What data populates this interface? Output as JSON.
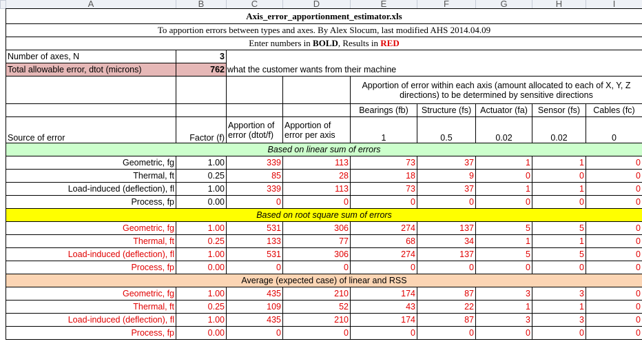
{
  "column_headers": [
    "A",
    "B",
    "C",
    "D",
    "E",
    "F",
    "G",
    "H",
    "I"
  ],
  "title": "Axis_error_apportionment_estimator.xls",
  "subtitle": "To apportion errors between types and axes.  By Alex Slocum, last modified AHS 2014.04.09",
  "instruction": {
    "prefix": "Enter numbers in ",
    "bold": "BOLD",
    "middle": ", Results in ",
    "red": "RED"
  },
  "inputs": [
    {
      "label": "Number of axes, N",
      "value": "3"
    },
    {
      "label": "Total allowable error, dtot (microns)",
      "value": "762",
      "note": "what the customer wants from their machine"
    }
  ],
  "axis_note": "Apportion of error within each axis (amount allocated to each of X, Y, Z directions) to be determined by sensitive directions",
  "axis_components": [
    "Bearings (fb)",
    "Structure (fs)",
    "Actuator (fa)",
    "Sensor (fs)",
    "Cables (fc)"
  ],
  "header": {
    "source": "Source of error",
    "factor": "Factor (f)",
    "apportion_dtot": "Apportion of error (dtot/f)",
    "apportion_axis": "Apportion of error per axis",
    "weights": [
      "1",
      "0.5",
      "0.02",
      "0.02",
      "0"
    ]
  },
  "sections": [
    {
      "title": "Based on linear sum of errors",
      "rows": [
        {
          "label": "Geometric, fg",
          "cells": [
            "1.00",
            "339",
            "113",
            "73",
            "37",
            "1",
            "1",
            "0"
          ]
        },
        {
          "label": "Thermal, ft",
          "cells": [
            "0.25",
            "85",
            "28",
            "18",
            "9",
            "0",
            "0",
            "0"
          ]
        },
        {
          "label": "Load-induced (deflection), fl",
          "cells": [
            "1.00",
            "339",
            "113",
            "73",
            "37",
            "1",
            "1",
            "0"
          ]
        },
        {
          "label": "Process, fp",
          "cells": [
            "0.00",
            "0",
            "0",
            "0",
            "0",
            "0",
            "0",
            "0"
          ]
        }
      ]
    },
    {
      "title": "Based on root square sum of errors",
      "rows": [
        {
          "label": "Geometric, fg",
          "cells": [
            "1.00",
            "531",
            "306",
            "274",
            "137",
            "5",
            "5",
            "0"
          ]
        },
        {
          "label": "Thermal, ft",
          "cells": [
            "0.25",
            "133",
            "77",
            "68",
            "34",
            "1",
            "1",
            "0"
          ]
        },
        {
          "label": "Load-induced (deflection), fl",
          "cells": [
            "1.00",
            "531",
            "306",
            "274",
            "137",
            "5",
            "5",
            "0"
          ]
        },
        {
          "label": "Process, fp",
          "cells": [
            "0.00",
            "0",
            "0",
            "0",
            "0",
            "0",
            "0",
            "0"
          ]
        }
      ]
    },
    {
      "title": "Average (expected case) of linear and RSS",
      "rows": [
        {
          "label": "Geometric, fg",
          "cells": [
            "1.00",
            "435",
            "210",
            "174",
            "87",
            "3",
            "3",
            "0"
          ]
        },
        {
          "label": "Thermal, ft",
          "cells": [
            "0.25",
            "109",
            "52",
            "43",
            "22",
            "1",
            "1",
            "0"
          ]
        },
        {
          "label": "Load-induced (deflection), fl",
          "cells": [
            "1.00",
            "435",
            "210",
            "174",
            "87",
            "3",
            "3",
            "0"
          ]
        },
        {
          "label": "Process, fp",
          "cells": [
            "0.00",
            "0",
            "0",
            "0",
            "0",
            "0",
            "0",
            "0"
          ]
        }
      ]
    }
  ]
}
